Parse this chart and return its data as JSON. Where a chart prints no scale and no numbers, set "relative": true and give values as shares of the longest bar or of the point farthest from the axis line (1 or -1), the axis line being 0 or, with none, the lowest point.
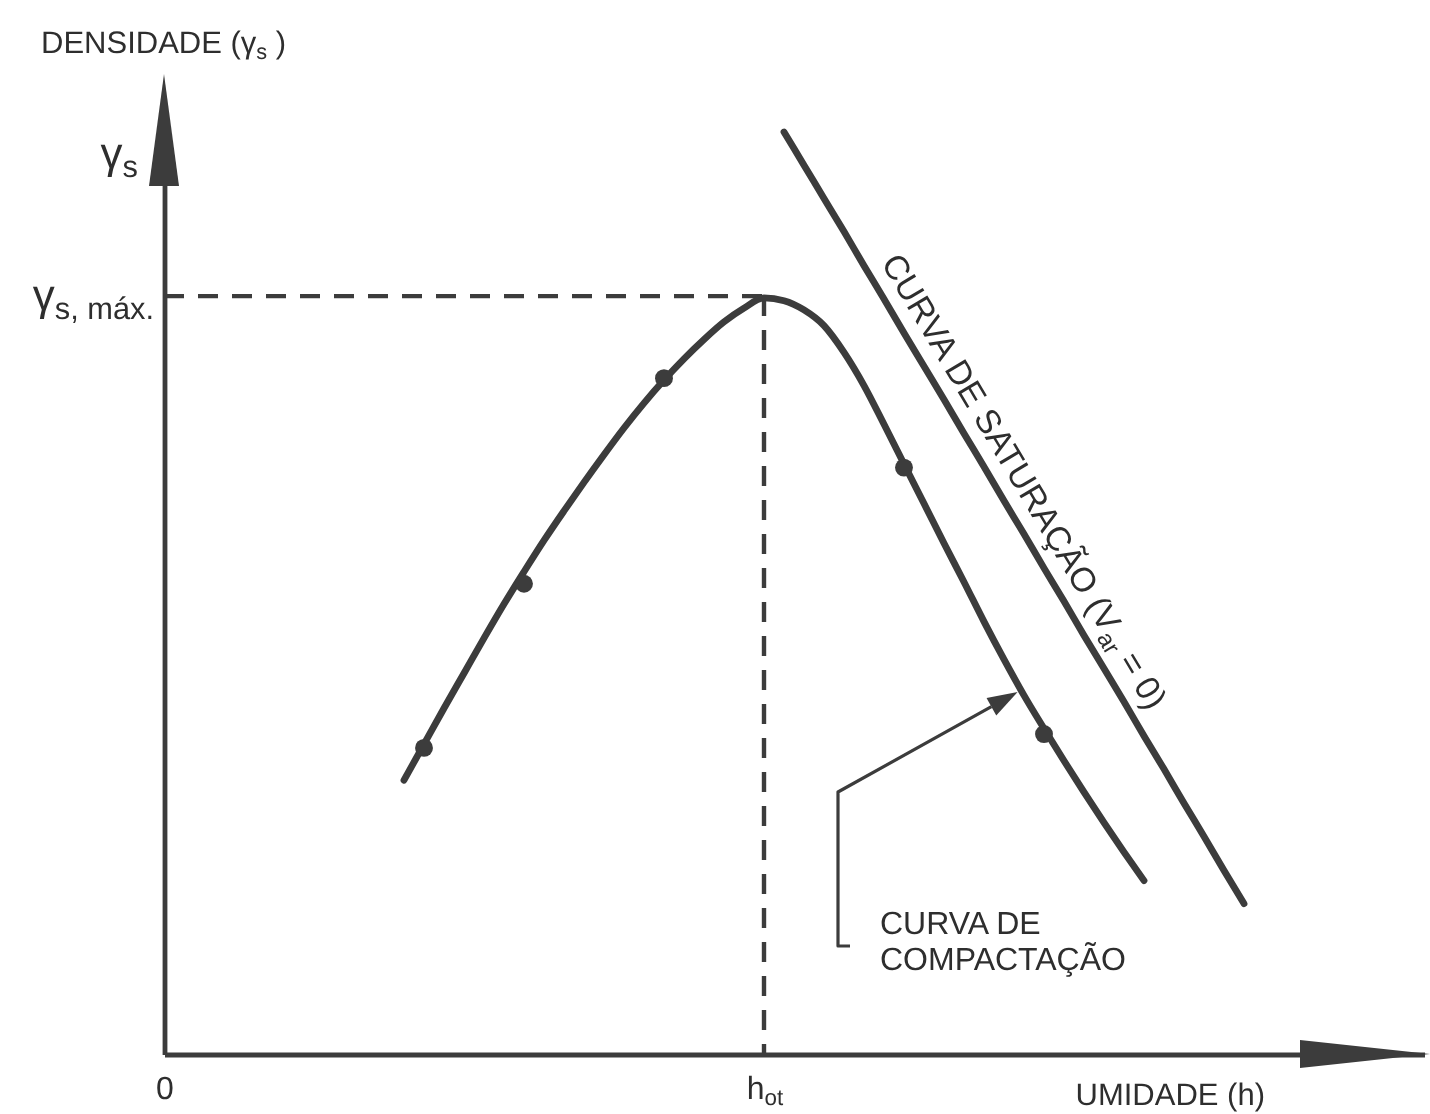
{
  "chart_data": {
    "type": "line",
    "xlabel": "UMIDADE (h)",
    "ylabel": "DENSIDADE (γ$_{s}$ )",
    "annotations": [
      "γ$_{s}$"
    ],
    "relative": true,
    "grid": false,
    "legend": false,
    "categories": [
      "0",
      null,
      null,
      null,
      null,
      null,
      null,
      null,
      null,
      null,
      null,
      null,
      null,
      null,
      null,
      null,
      null,
      null,
      null,
      null,
      null,
      null,
      null,
      null,
      null,
      null,
      null,
      null,
      null,
      null,
      "h$_{ot}$",
      null,
      null,
      null,
      null,
      null,
      null,
      null,
      null,
      null,
      null,
      null,
      null,
      null,
      null,
      null,
      null,
      null,
      null,
      null,
      null,
      null,
      null,
      null,
      null,
      null,
      null,
      null,
      null,
      null,
      null,
      null,
      null,
      null
    ],
    "series": [
      {
        "name": "CURVA DE COMPACTAÇÃO",
        "color": "#3c3c3c",
        "values": [
          null,
          null,
          null,
          null,
          null,
          null,
          null,
          null,
          null,
          null,
          null,
          null,
          0.297,
          0.336,
          0.375,
          0.413,
          0.451,
          0.488,
          0.523,
          0.557,
          0.589,
          0.62,
          0.65,
          0.679,
          0.706,
          0.731,
          0.754,
          0.775,
          0.794,
          0.809,
          0.82,
          0.817,
          0.807,
          0.79,
          0.761,
          0.725,
          0.683,
          0.64,
          0.597,
          0.554,
          0.512,
          0.469,
          0.428,
          0.389,
          0.353,
          0.318,
          0.284,
          0.251,
          0.219,
          0.188,
          null,
          null,
          null,
          null,
          null,
          null,
          null,
          null,
          null,
          null,
          null,
          null,
          null,
          null
        ]
      },
      {
        "type": "scatter",
        "marker": "circle",
        "color": "#3c3c3c",
        "values": [
          null,
          null,
          null,
          null,
          null,
          null,
          null,
          null,
          null,
          null,
          null,
          null,
          null,
          0.332,
          null,
          null,
          null,
          null,
          0.51,
          null,
          null,
          null,
          null,
          null,
          null,
          0.733,
          null,
          null,
          null,
          null,
          null,
          null,
          null,
          null,
          null,
          null,
          null,
          0.636,
          null,
          null,
          null,
          null,
          null,
          null,
          0.347,
          null,
          null,
          null,
          null,
          null,
          null,
          null,
          null,
          null,
          null,
          null,
          null,
          null,
          null,
          null,
          null,
          null,
          null,
          null
        ]
      },
      {
        "name": "CURVA DE SATURAÇÃO (V$_{ar}$ = 0)",
        "color": "#3c3c3c",
        "values": [
          null,
          null,
          null,
          null,
          null,
          null,
          null,
          null,
          null,
          null,
          null,
          null,
          null,
          null,
          null,
          null,
          null,
          null,
          null,
          null,
          null,
          null,
          null,
          null,
          null,
          null,
          null,
          null,
          null,
          null,
          null,
          1.0,
          0.964,
          0.928,
          0.892,
          0.855,
          0.819,
          0.782,
          0.746,
          0.71,
          0.673,
          0.637,
          0.6,
          0.564,
          0.527,
          0.491,
          0.454,
          0.418,
          0.382,
          0.345,
          0.309,
          0.272,
          0.236,
          0.199,
          0.163,
          null,
          null,
          null,
          null,
          null,
          null,
          null,
          null,
          null
        ]
      }
    ],
    "ref_lines": [
      {
        "axis": "x",
        "value": "h$_{ot}$",
        "line_style": "dashed",
        "color": "#3c3c3c"
      },
      {
        "axis": "y",
        "value": 0.822,
        "label": "γ$_{s, máx.}$",
        "line_style": "dashed",
        "color": "#3c3c3c"
      }
    ]
  }
}
